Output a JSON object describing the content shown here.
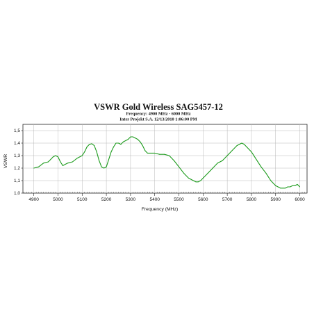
{
  "chart_data": {
    "type": "line",
    "title": "VSWR Gold Wireless SAG5457-12",
    "subtitle_lines": [
      "Frequency: 4900 MHz - 6000 MHz",
      "Inter Projekt S.A. 12/13/2010 1:06:00 PM"
    ],
    "xlabel": "Frequency (MHz)",
    "ylabel": "VSWR",
    "xlim": [
      4855,
      6030
    ],
    "ylim": [
      1.0,
      1.55
    ],
    "x_ticks": [
      "4900",
      "5000",
      "5100",
      "5200",
      "5300",
      "5400",
      "5500",
      "5600",
      "5700",
      "5800",
      "5900",
      "6000"
    ],
    "y_ticks": [
      "1,0",
      "1,1",
      "1,2",
      "1,3",
      "1,4",
      "1,5"
    ],
    "grid": true,
    "line_color": "#1a9a1a",
    "series": [
      {
        "x": [
          4900,
          4920,
          4940,
          4960,
          4970,
          4980,
          4990,
          5000,
          5010,
          5020,
          5040,
          5060,
          5080,
          5100,
          5110,
          5120,
          5130,
          5140,
          5150,
          5160,
          5170,
          5180,
          5190,
          5200,
          5210,
          5220,
          5230,
          5240,
          5250,
          5260,
          5270,
          5280,
          5290,
          5300,
          5310,
          5320,
          5330,
          5340,
          5350,
          5360,
          5370,
          5380,
          5390,
          5400,
          5420,
          5440,
          5460,
          5480,
          5500,
          5520,
          5540,
          5560,
          5570,
          5580,
          5590,
          5600,
          5620,
          5640,
          5660,
          5680,
          5700,
          5720,
          5740,
          5750,
          5760,
          5770,
          5780,
          5800,
          5820,
          5840,
          5860,
          5880,
          5890,
          5900,
          5910,
          5920,
          5930,
          5940,
          5950,
          5960,
          5970,
          5980,
          5990,
          6000
        ],
        "values": [
          1.2,
          1.21,
          1.24,
          1.25,
          1.27,
          1.29,
          1.3,
          1.29,
          1.25,
          1.22,
          1.24,
          1.25,
          1.28,
          1.3,
          1.33,
          1.37,
          1.39,
          1.395,
          1.38,
          1.33,
          1.26,
          1.21,
          1.2,
          1.21,
          1.27,
          1.33,
          1.37,
          1.4,
          1.4,
          1.39,
          1.41,
          1.42,
          1.43,
          1.45,
          1.45,
          1.44,
          1.43,
          1.41,
          1.38,
          1.34,
          1.32,
          1.32,
          1.32,
          1.32,
          1.31,
          1.31,
          1.3,
          1.26,
          1.21,
          1.16,
          1.12,
          1.1,
          1.09,
          1.09,
          1.1,
          1.12,
          1.16,
          1.2,
          1.24,
          1.26,
          1.3,
          1.34,
          1.38,
          1.39,
          1.4,
          1.39,
          1.37,
          1.33,
          1.27,
          1.21,
          1.16,
          1.1,
          1.08,
          1.06,
          1.05,
          1.04,
          1.04,
          1.04,
          1.05,
          1.05,
          1.06,
          1.06,
          1.07,
          1.05
        ]
      }
    ]
  }
}
